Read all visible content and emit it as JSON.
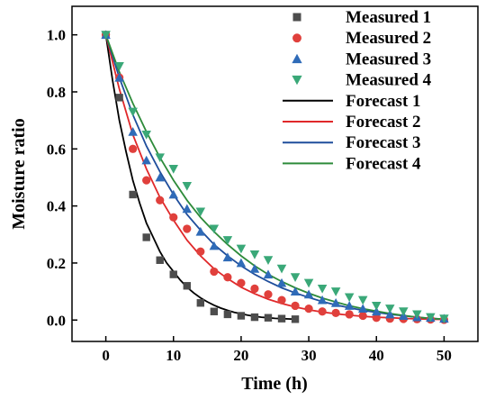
{
  "chart_data": {
    "type": "scatter",
    "xlabel": "Time (h)",
    "ylabel": "Moisture ratio",
    "xlim": [
      -5,
      55
    ],
    "ylim": [
      -0.075,
      1.1
    ],
    "x_ticks": [
      "0",
      "10",
      "20",
      "30",
      "40",
      "50"
    ],
    "y_ticks": [
      "0.0",
      "0.2",
      "0.4",
      "0.6",
      "0.8",
      "1.0"
    ],
    "legend_position": "top-right",
    "grid": false,
    "series": [
      {
        "name": "Measured 1",
        "kind": "markers",
        "marker": "square",
        "color": "#4d4d4d",
        "x": [
          0,
          2,
          4,
          6,
          8,
          10,
          12,
          14,
          16,
          18,
          20,
          22,
          24,
          26,
          28
        ],
        "y": [
          1.0,
          0.78,
          0.44,
          0.29,
          0.21,
          0.16,
          0.12,
          0.06,
          0.03,
          0.02,
          0.015,
          0.01,
          0.008,
          0.005,
          0.003
        ]
      },
      {
        "name": "Measured 2",
        "kind": "markers",
        "marker": "circle",
        "color": "#e0403c",
        "x": [
          0,
          2,
          4,
          6,
          8,
          10,
          12,
          14,
          16,
          18,
          20,
          22,
          24,
          26,
          28,
          30,
          32,
          34,
          36,
          38,
          40,
          42,
          44,
          46,
          48,
          50
        ],
        "y": [
          1.0,
          0.85,
          0.6,
          0.49,
          0.42,
          0.36,
          0.32,
          0.24,
          0.17,
          0.15,
          0.13,
          0.11,
          0.09,
          0.07,
          0.05,
          0.04,
          0.03,
          0.025,
          0.02,
          0.015,
          0.008,
          0.005,
          0.004,
          0.003,
          0.002,
          0.001
        ]
      },
      {
        "name": "Measured 3",
        "kind": "markers",
        "marker": "triangle-up",
        "color": "#2f6bb8",
        "x": [
          0,
          2,
          4,
          6,
          8,
          10,
          12,
          14,
          16,
          18,
          20,
          22,
          24,
          26,
          28,
          30,
          32,
          34,
          36,
          38,
          40,
          42,
          44,
          46,
          48,
          50
        ],
        "y": [
          1.0,
          0.85,
          0.66,
          0.56,
          0.5,
          0.44,
          0.39,
          0.31,
          0.26,
          0.22,
          0.2,
          0.18,
          0.16,
          0.13,
          0.1,
          0.09,
          0.07,
          0.06,
          0.05,
          0.04,
          0.03,
          0.02,
          0.015,
          0.01,
          0.008,
          0.005
        ]
      },
      {
        "name": "Measured 4",
        "kind": "markers",
        "marker": "triangle-down",
        "color": "#3aa878",
        "x": [
          0,
          2,
          4,
          6,
          8,
          10,
          12,
          14,
          16,
          18,
          20,
          22,
          24,
          26,
          28,
          30,
          32,
          34,
          36,
          38,
          40,
          42,
          44,
          46,
          48,
          50
        ],
        "y": [
          1.0,
          0.89,
          0.73,
          0.65,
          0.57,
          0.53,
          0.47,
          0.38,
          0.32,
          0.28,
          0.25,
          0.23,
          0.21,
          0.18,
          0.15,
          0.13,
          0.11,
          0.1,
          0.08,
          0.07,
          0.05,
          0.04,
          0.03,
          0.02,
          0.01,
          0.005
        ]
      },
      {
        "name": "Forecast 1",
        "kind": "line",
        "color": "#000000",
        "x": [
          0,
          1,
          2,
          3,
          4,
          5,
          6,
          7,
          8,
          9,
          10,
          11,
          12,
          13,
          14,
          15,
          16,
          17,
          18,
          19,
          20,
          21,
          22,
          23,
          24,
          25,
          26,
          27,
          28
        ],
        "y": [
          1.0,
          0.84,
          0.7,
          0.59,
          0.49,
          0.41,
          0.34,
          0.29,
          0.24,
          0.2,
          0.17,
          0.14,
          0.115,
          0.095,
          0.078,
          0.064,
          0.052,
          0.042,
          0.034,
          0.027,
          0.022,
          0.017,
          0.013,
          0.01,
          0.008,
          0.006,
          0.005,
          0.004,
          0.003
        ]
      },
      {
        "name": "Forecast 2",
        "kind": "line",
        "color": "#e0282a",
        "x": [
          0,
          2,
          4,
          6,
          8,
          10,
          12,
          14,
          16,
          18,
          20,
          22,
          24,
          26,
          28,
          30,
          32,
          34,
          36,
          38,
          40,
          42,
          44,
          46,
          48,
          50
        ],
        "y": [
          1.0,
          0.81,
          0.65,
          0.53,
          0.43,
          0.35,
          0.28,
          0.225,
          0.18,
          0.145,
          0.115,
          0.092,
          0.073,
          0.058,
          0.046,
          0.036,
          0.028,
          0.022,
          0.017,
          0.013,
          0.01,
          0.008,
          0.006,
          0.004,
          0.003,
          0.002
        ]
      },
      {
        "name": "Forecast 3",
        "kind": "line",
        "color": "#1f4e9c",
        "x": [
          0,
          2,
          4,
          6,
          8,
          10,
          12,
          14,
          16,
          18,
          20,
          22,
          24,
          26,
          28,
          30,
          32,
          34,
          36,
          38,
          40,
          42,
          44,
          46,
          48,
          50
        ],
        "y": [
          1.0,
          0.85,
          0.72,
          0.61,
          0.52,
          0.44,
          0.37,
          0.315,
          0.265,
          0.225,
          0.19,
          0.16,
          0.135,
          0.113,
          0.095,
          0.079,
          0.065,
          0.053,
          0.043,
          0.034,
          0.027,
          0.02,
          0.015,
          0.01,
          0.006,
          0.003
        ]
      },
      {
        "name": "Forecast 4",
        "kind": "line",
        "color": "#2e8b3a",
        "x": [
          0,
          2,
          4,
          6,
          8,
          10,
          12,
          14,
          16,
          18,
          20,
          22,
          24,
          26,
          28,
          30,
          32,
          34,
          36,
          38,
          40,
          42,
          44,
          46,
          48,
          50
        ],
        "y": [
          1.0,
          0.87,
          0.76,
          0.66,
          0.57,
          0.49,
          0.42,
          0.36,
          0.31,
          0.265,
          0.225,
          0.19,
          0.16,
          0.135,
          0.113,
          0.094,
          0.077,
          0.063,
          0.05,
          0.04,
          0.031,
          0.023,
          0.016,
          0.01,
          0.006,
          0.003
        ]
      }
    ]
  }
}
